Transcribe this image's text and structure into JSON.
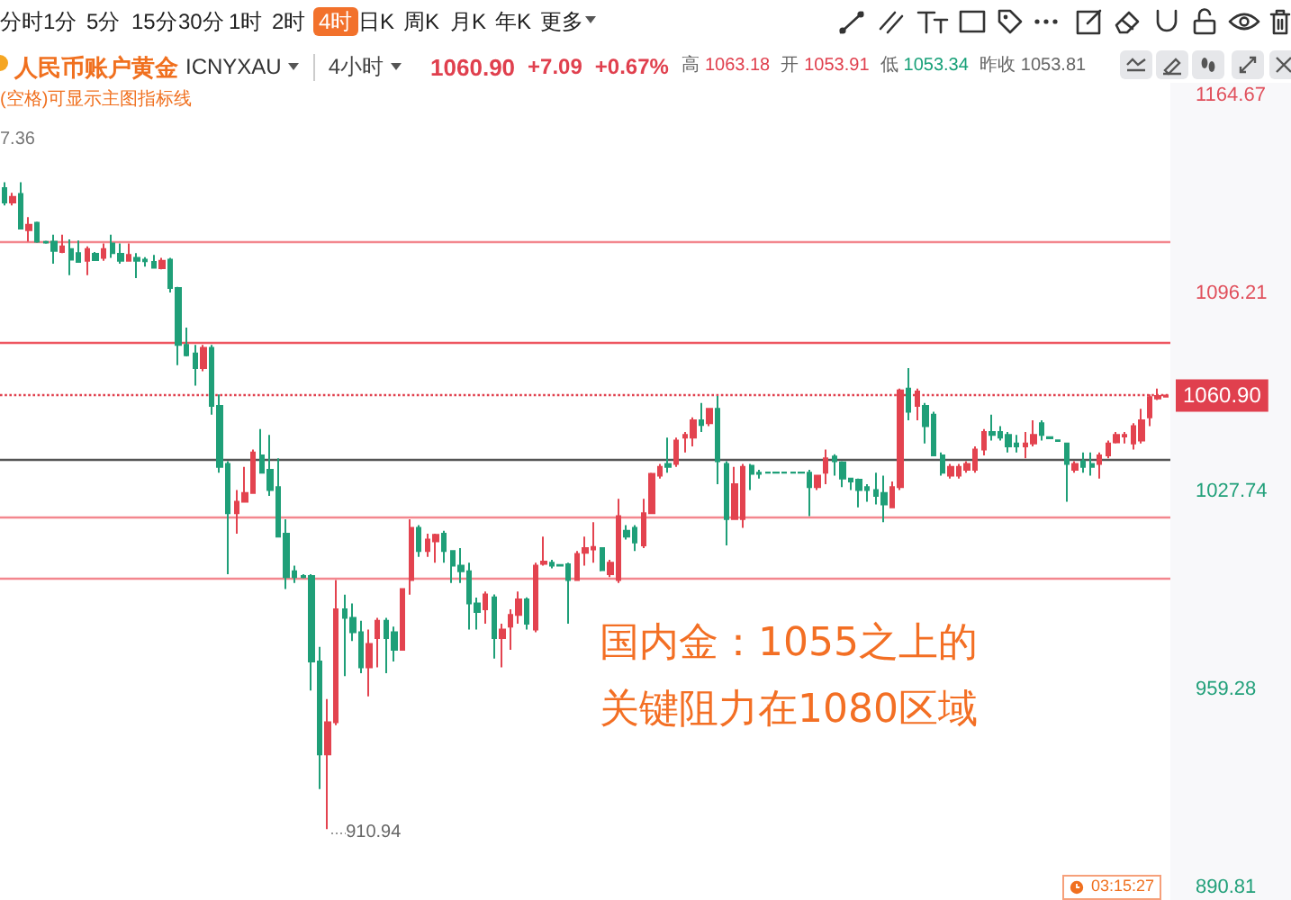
{
  "chart_data": {
    "type": "candlestick",
    "title": "人民币账户黄金",
    "subtitle": "ICNYXAU",
    "categories": [
      null,
      null,
      null,
      null,
      null,
      null,
      null,
      null,
      null,
      null,
      null,
      null,
      null,
      null,
      null,
      null,
      null,
      null,
      null,
      null,
      null,
      null,
      null,
      null,
      null,
      null,
      null,
      null,
      null,
      null,
      null,
      null,
      null,
      null,
      null,
      null,
      null,
      null,
      null,
      null,
      null,
      null,
      null,
      null,
      null,
      null,
      null,
      null,
      null,
      null,
      null,
      null,
      null,
      null,
      null,
      null,
      null,
      null,
      null,
      null,
      null,
      null,
      null,
      null,
      null,
      null,
      null,
      null,
      null,
      null,
      null,
      null,
      null,
      null,
      null,
      null,
      null,
      null,
      null,
      null,
      null,
      null,
      null,
      null,
      null,
      null,
      null,
      null,
      null,
      null,
      null,
      null,
      null,
      null,
      null,
      null,
      null,
      null,
      null,
      null,
      null,
      null,
      null,
      null,
      null,
      null,
      null,
      null,
      null,
      null,
      null,
      null,
      null,
      null,
      null,
      null,
      null,
      null,
      null,
      null,
      null,
      null,
      null,
      null,
      null,
      null,
      null,
      null,
      null,
      null,
      null,
      null,
      null,
      null,
      null,
      null,
      null,
      null,
      null,
      null,
      null
    ],
    "ohlc": [
      [
        1132.6,
        1134.6,
        1126.6,
        1127.6
      ],
      [
        1127.6,
        1131,
        1126.6,
        1129.6
      ],
      [
        1130.6,
        1134.6,
        1118.6,
        1118.6
      ],
      [
        1118.1,
        1122.6,
        1114.1,
        1119.9
      ],
      [
        1120.6,
        1121,
        1113.7,
        1114.1
      ],
      [
        1114,
        1114.4,
        1113.4,
        1113.8
      ],
      [
        1114.1,
        1116.5,
        1106.5,
        1110.9
      ],
      [
        1110.5,
        1116.5,
        1110.1,
        1112.5
      ],
      [
        1111.5,
        1114.9,
        1102.5,
        1107.9
      ],
      [
        1110.1,
        1114.5,
        1107.1,
        1107.1
      ],
      [
        1107.5,
        1112.5,
        1102.5,
        1111.5
      ],
      [
        1109.9,
        1110.5,
        1107.5,
        1107.7
      ],
      [
        1108.5,
        1113.5,
        1107.5,
        1111.5
      ],
      [
        1113.5,
        1116.5,
        1108.5,
        1110.1
      ],
      [
        1109.9,
        1113.5,
        1106.5,
        1107.5
      ],
      [
        1107.5,
        1113.5,
        1107.5,
        1109.5
      ],
      [
        1108.5,
        1110.1,
        1101.5,
        1107.5
      ],
      [
        1107.9,
        1108.7,
        1105.5,
        1107.3
      ],
      [
        1107.1,
        1109.5,
        1104.9,
        1105.1
      ],
      [
        1104.9,
        1108.5,
        1104.5,
        1107.5
      ],
      [
        1107.9,
        1108.5,
        1096.5,
        1098.1
      ],
      [
        1098.1,
        1098.5,
        1071.4,
        1078.4
      ],
      [
        1078.4,
        1084.4,
        1074.4,
        1074.8
      ],
      [
        1075.4,
        1078.4,
        1064.3,
        1070.4
      ],
      [
        1070.4,
        1078.4,
        1069.3,
        1077.4
      ],
      [
        1077.4,
        1078.4,
        1054.3,
        1057.3
      ],
      [
        1057.3,
        1061.3,
        1034.2,
        1036.2
      ],
      [
        1037.2,
        1038.2,
        999.1,
        1020.2
      ],
      [
        1020.2,
        1028.2,
        1013.1,
        1024.2
      ],
      [
        1024.2,
        1036.2,
        1024.2,
        1027.2
      ],
      [
        1027.2,
        1042.2,
        1027.2,
        1041.2
      ],
      [
        1040.2,
        1049.3,
        1034.2,
        1034.2
      ],
      [
        1035.2,
        1047.3,
        1026.2,
        1028.2
      ],
      [
        1029.2,
        1039.2,
        1012.1,
        1012.1
      ],
      [
        1013.1,
        1018.1,
        994.0,
        998.1
      ],
      [
        1000.1,
        1002.1,
        996.1,
        998.1
      ],
      [
        998.5,
        999.1,
        997.7,
        998.1
      ],
      [
        998.5,
        999.1,
        958.9,
        968.9
      ],
      [
        968.9,
        974.0,
        924.8,
        936.8
      ],
      [
        936.8,
        955.9,
        910.94,
        947.9
      ],
      [
        947.9,
        997.1,
        946.9,
        987.0
      ],
      [
        987.0,
        992.0,
        963.9,
        984.0
      ],
      [
        984.0,
        989.0,
        976.0,
        979.0
      ],
      [
        979.0,
        983.0,
        964.9,
        966.9
      ],
      [
        966.9,
        980.0,
        956.9,
        975.0
      ],
      [
        977.0,
        984.0,
        966.9,
        983.0
      ],
      [
        983.0,
        984.0,
        964.9,
        977.0
      ],
      [
        979.0,
        981.0,
        968.9,
        973.0
      ],
      [
        973.0,
        994.1,
        972.9,
        994.0
      ],
      [
        997.1,
        1018.1,
        992.0,
        1015.1
      ],
      [
        1015.1,
        1016.1,
        1005.1,
        1007.1
      ],
      [
        1007.1,
        1013.1,
        1005.1,
        1011.1
      ],
      [
        1010.5,
        1013.1,
        1003.1,
        1012.7
      ],
      [
        1013.1,
        1014.1,
        1003.1,
        1007.1
      ],
      [
        1007.1,
        1007.1,
        996.1,
        1002.1
      ],
      [
        1002.1,
        1008.1,
        996.1,
        1000.1
      ],
      [
        1000.1,
        1003.1,
        980.0,
        989.0
      ],
      [
        989.0,
        991.0,
        980.0,
        986.0
      ],
      [
        987.0,
        993.1,
        982.0,
        992.1
      ],
      [
        991.1,
        992.1,
        969.9,
        977.0
      ],
      [
        977.0,
        982.0,
        966.9,
        980.0
      ],
      [
        981.0,
        987.0,
        973.0,
        985.0
      ],
      [
        985.0,
        993.1,
        982.0,
        990.4
      ],
      [
        990.4,
        991.1,
        980.0,
        982.0
      ],
      [
        980.0,
        1003.1,
        979.0,
        1002.1
      ],
      [
        1002.7,
        1012.1,
        1002.1,
        1003.5
      ],
      [
        1003.1,
        1004.1,
        1001.1,
        1002.1
      ],
      [
        1002.3,
        1002.5,
        1001.9,
        1002.1
      ],
      [
        1002.5,
        1003.1,
        982.0,
        997.1
      ],
      [
        997.1,
        1007.1,
        997.1,
        1006.1
      ],
      [
        1006.5,
        1012.1,
        1002.1,
        1008.1
      ],
      [
        1007.7,
        1017.1,
        1003.1,
        1008.5
      ],
      [
        1008.1,
        1008.1,
        1000.1,
        1000.5
      ],
      [
        999.1,
        1004.1,
        998.1,
        1003.1
      ],
      [
        997.1,
        1025.2,
        996.1,
        1019.2
      ],
      [
        1014.1,
        1016.1,
        1011.1,
        1012.1
      ],
      [
        1015.1,
        1016.1,
        1007.1,
        1010.1
      ],
      [
        1009.1,
        1025.2,
        1008.1,
        1020.2
      ],
      [
        1020.2,
        1034.2,
        1020.2,
        1033.8
      ],
      [
        1033.2,
        1037.2,
        1032.2,
        1036.2
      ],
      [
        1037.2,
        1046.3,
        1034.2,
        1036.2
      ],
      [
        1037.2,
        1046.3,
        1036.2,
        1045.3
      ],
      [
        1046.3,
        1048.3,
        1041.2,
        1047.3
      ],
      [
        1046.3,
        1053.3,
        1043.3,
        1052.3
      ],
      [
        1052.3,
        1058.3,
        1048.3,
        1050.7
      ],
      [
        1051.3,
        1056.3,
        1050.3,
        1056.3
      ],
      [
        1056.3,
        1060.7,
        1030.2,
        1038.2
      ],
      [
        1037.2,
        1038.2,
        1009.1,
        1018.2
      ],
      [
        1018.2,
        1036.2,
        1018.2,
        1030.2
      ],
      [
        1018.2,
        1037.2,
        1015.1,
        1036.2
      ],
      [
        1036.6,
        1037.2,
        1028.2,
        1033.8
      ],
      [
        1034.2,
        1035.2,
        1032.2,
        1033.8
      ],
      [
        1034.3,
        1034.4,
        1034.1,
        1034.2
      ],
      [
        1034.3,
        1034.4,
        1034.1,
        1034.2
      ],
      [
        1034.3,
        1034.4,
        1034.1,
        1034.2
      ],
      [
        1034.3,
        1034.4,
        1034.1,
        1034.2
      ],
      [
        1034.3,
        1034.4,
        1034.1,
        1034.2
      ],
      [
        1034.2,
        1035.2,
        1019.2,
        1029.2
      ],
      [
        1029.2,
        1033.2,
        1028.2,
        1033.2
      ],
      [
        1034.2,
        1042.2,
        1030.2,
        1039.2
      ],
      [
        1039.8,
        1040.6,
        1033.2,
        1038.2
      ],
      [
        1037.8,
        1038.2,
        1029.2,
        1032.2
      ],
      [
        1032.2,
        1032.2,
        1028.2,
        1031.2
      ],
      [
        1031.8,
        1032.2,
        1022.2,
        1028.2
      ],
      [
        1029.2,
        1030.2,
        1024.2,
        1028.2
      ],
      [
        1028.2,
        1034.2,
        1023.2,
        1026.2
      ],
      [
        1027.2,
        1033.2,
        1017.1,
        1023.2
      ],
      [
        1022.2,
        1031.2,
        1022.2,
        1029.2
      ],
      [
        1029.2,
        1063.3,
        1028.2,
        1062.7
      ],
      [
        1063.3,
        1070.4,
        1052.3,
        1055.3
      ],
      [
        1057.3,
        1063.3,
        1052.3,
        1062.3
      ],
      [
        1057.3,
        1058.3,
        1044.3,
        1050.3
      ],
      [
        1054.3,
        1055.3,
        1040.2,
        1040.2
      ],
      [
        1040.2,
        1041.2,
        1033.2,
        1034.2
      ],
      [
        1033.2,
        1037.2,
        1032.2,
        1036.2
      ],
      [
        1033.2,
        1037.2,
        1032.2,
        1036.2
      ],
      [
        1035.2,
        1038.2,
        1034.2,
        1037.2
      ],
      [
        1035.2,
        1043.3,
        1034.2,
        1042.2
      ],
      [
        1042.2,
        1049.3,
        1040.2,
        1048.3
      ],
      [
        1048.3,
        1054.3,
        1045.3,
        1047.3
      ],
      [
        1048.3,
        1050.3,
        1045.3,
        1046.3
      ],
      [
        1047.3,
        1048.3,
        1041.2,
        1043.3
      ],
      [
        1044.3,
        1047.3,
        1041.2,
        1043.3
      ],
      [
        1043.3,
        1048.3,
        1039.2,
        1044.3
      ],
      [
        1044.3,
        1052.3,
        1043.3,
        1047.3
      ],
      [
        1051.3,
        1052.3,
        1045.3,
        1047.3
      ],
      [
        1046.5,
        1046.7,
        1045.9,
        1046.1
      ],
      [
        1045.4,
        1045.5,
        1045.1,
        1045.2
      ],
      [
        1044.3,
        1044.3,
        1024.2,
        1037.2
      ],
      [
        1035.2,
        1038.2,
        1034.2,
        1037.2
      ],
      [
        1038.2,
        1041.2,
        1034.2,
        1036.2
      ],
      [
        1037.2,
        1041.2,
        1033.2,
        1036.2
      ],
      [
        1037.2,
        1041.2,
        1032.2,
        1040.2
      ],
      [
        1040.2,
        1045.3,
        1039.2,
        1044.3
      ],
      [
        1044.7,
        1048.3,
        1044.3,
        1047.3
      ],
      [
        1046.7,
        1048.3,
        1044.3,
        1047.3
      ],
      [
        1044.3,
        1051.3,
        1042.2,
        1050.3
      ],
      [
        1045.3,
        1056.3,
        1044.3,
        1052.3
      ],
      [
        1053.3,
        1061.3,
        1050.3,
        1060.3
      ],
      [
        1059.9,
        1063.3,
        1059.3,
        1060.7
      ],
      [
        1060.5,
        1061.1,
        1060.3,
        1060.9
      ]
    ],
    "ylim": [
      890.81,
      1164.67
    ],
    "yticks": [
      890.81,
      959.28,
      1027.74,
      1096.21,
      1164.67
    ],
    "grid": false,
    "tick_labels": "y",
    "ref_lines": [
      {
        "axis": "y",
        "value": 1113.9,
        "color": "#f3878e"
      },
      {
        "axis": "y",
        "value": 1079.0,
        "color": "#ee5660"
      },
      {
        "axis": "y",
        "value": 1038.6,
        "color": "#555555"
      },
      {
        "axis": "y",
        "value": 1018.7,
        "color": "#f3878e"
      },
      {
        "axis": "y",
        "value": 997.6,
        "color": "#f3878e"
      },
      {
        "axis": "y",
        "value": 1060.9,
        "label": "1060.90",
        "color": "#e0404e",
        "line_style": "dotted"
      }
    ],
    "annotations": [
      "分时",
      "1分",
      "5分",
      "15分",
      "30分",
      "1时",
      "2时",
      "4时",
      "日K",
      "周K",
      "月K",
      "年K",
      "更多",
      "4小时",
      "1060.90",
      "+7.09",
      "+0.67%",
      "高",
      "1063.18",
      "开",
      "1053.91",
      "低",
      "1053.34",
      "昨收",
      "1053.81",
      "(空格)可显示主图指标线",
      "7.36",
      "910.94",
      "国内金：1055之上的",
      "关键阻力在1080区域",
      "03:15:27"
    ]
  }
}
